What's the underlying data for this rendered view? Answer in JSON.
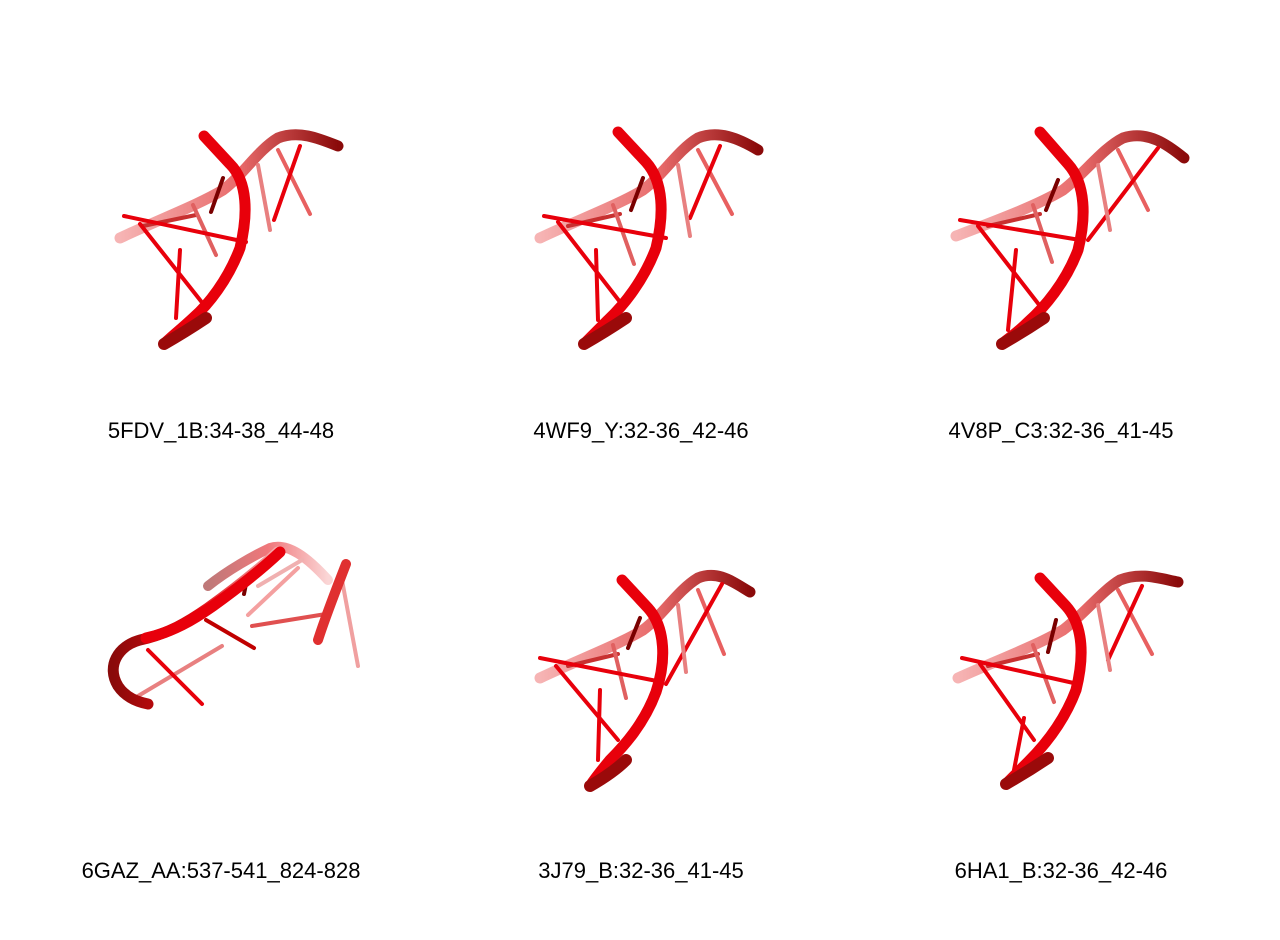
{
  "panels": [
    {
      "label": "5FDV_1B:34-38_44-48",
      "shape": "hairpin"
    },
    {
      "label": "4WF9_Y:32-36_42-46",
      "shape": "hairpin"
    },
    {
      "label": "4V8P_C3:32-36_41-45",
      "shape": "hairpin"
    },
    {
      "label": "6GAZ_AA:537-541_824-828",
      "shape": "open"
    },
    {
      "label": "3J79_B:32-36_41-45",
      "shape": "hairpin"
    },
    {
      "label": "6HA1_B:32-36_42-46",
      "shape": "hairpin"
    }
  ],
  "colors": {
    "strand": "#e8000b",
    "dark": "#7a0000",
    "faded": "#f4a0a0"
  }
}
